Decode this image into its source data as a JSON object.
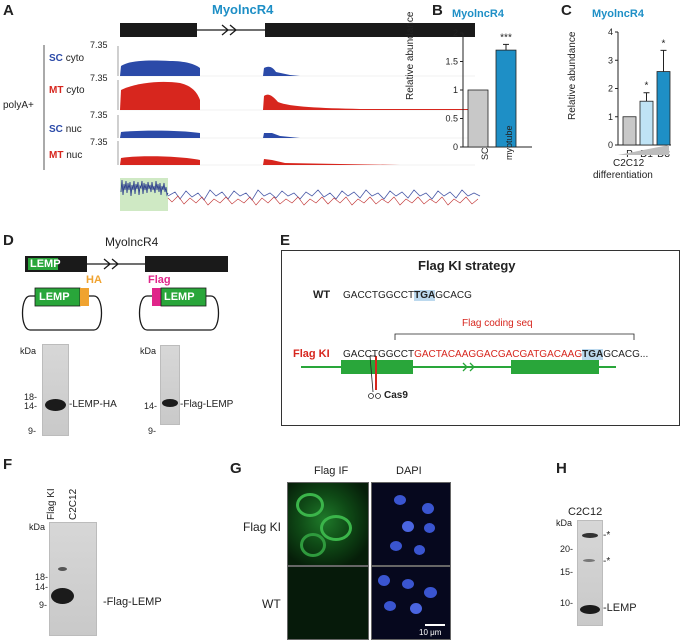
{
  "panel_labels": {
    "A": "A",
    "B": "B",
    "C": "C",
    "D": "D",
    "E": "E",
    "F": "F",
    "G": "G",
    "H": "H"
  },
  "panelA": {
    "title": "MyolncR4",
    "group_label": "polyA+",
    "tracks": [
      {
        "cell": "SC",
        "frac": "cyto",
        "scale": "7.35",
        "color": "#2b4aa8"
      },
      {
        "cell": "MT",
        "frac": "cyto",
        "scale": "7.35",
        "color": "#d7261e"
      },
      {
        "cell": "SC",
        "frac": "nuc",
        "scale": "7.35",
        "color": "#2b4aa8"
      },
      {
        "cell": "MT",
        "frac": "nuc",
        "scale": "7.35",
        "color": "#d7261e"
      }
    ]
  },
  "panelB": {
    "title": "MyolncR4",
    "ylabel": "Relative abundance",
    "yticks": [
      "0",
      "0.5",
      "1",
      "1.5",
      "2"
    ],
    "significance": "***",
    "chart_data": {
      "type": "bar",
      "categories": [
        "SC",
        "myotube"
      ],
      "values": [
        1.0,
        1.7
      ],
      "errors": [
        0,
        0.1
      ],
      "ylim": [
        0,
        2
      ],
      "colors": [
        "#c8c8c8",
        "#1e8fc6"
      ]
    }
  },
  "panelC": {
    "title": "MyolncR4",
    "ylabel": "Relative abundance",
    "yticks": [
      "0",
      "1",
      "2",
      "3",
      "4"
    ],
    "xlabel_line1": "C2C12",
    "xlabel_line2": "differentiation",
    "significance": [
      "*",
      "*"
    ],
    "chart_data": {
      "type": "bar",
      "categories": [
        "P",
        "D1",
        "D3"
      ],
      "values": [
        1.0,
        1.55,
        2.6
      ],
      "errors": [
        0,
        0.3,
        0.75
      ],
      "ylim": [
        0,
        4
      ],
      "colors": [
        "#c8c8c8",
        "#bfe3f5",
        "#1e8fc6"
      ]
    }
  },
  "panelD": {
    "gene": "MyolncR4",
    "exon_label": "LEMP",
    "plasmid1_tag": "HA",
    "plasmid1_insert": "LEMP",
    "plasmid2_tag": "Flag",
    "plasmid2_insert": "LEMP",
    "blot1": {
      "unit": "kDa",
      "markers": [
        "18-",
        "14-",
        "9-"
      ],
      "band_label": "-LEMP-HA"
    },
    "blot2": {
      "unit": "kDa",
      "markers": [
        "14-",
        "9-"
      ],
      "band_label": "-Flag-LEMP"
    }
  },
  "panelE": {
    "title": "Flag KI strategy",
    "wt_label": "WT",
    "wt_seq_a": "GACCTGGCCT",
    "wt_seq_stop": "TGA",
    "wt_seq_b": "GCACG",
    "ki_label": "Flag KI",
    "ki_seq_a": "GACCTGGCCT",
    "ki_seq_insert": "GACTACAAGGACGACGATGACAAG",
    "ki_seq_stop": "TGA",
    "ki_seq_b": "GCACG...",
    "coding_label": "Flag coding seq",
    "cas9_label": "Cas9"
  },
  "panelF": {
    "lanes": [
      "Flag KI",
      "C2C12"
    ],
    "unit": "kDa",
    "markers": [
      "18-",
      "14-",
      "9-"
    ],
    "band_label": "-Flag-LEMP"
  },
  "panelG": {
    "col1": "Flag IF",
    "col2": "DAPI",
    "row1": "Flag KI",
    "row2": "WT",
    "scale_bar": "10 μm"
  },
  "panelH": {
    "lane": "C2C12",
    "unit": "kDa",
    "markers": [
      "20-",
      "15-",
      "10-"
    ],
    "stars": [
      "*",
      "*"
    ],
    "band_label": "-LEMP"
  }
}
